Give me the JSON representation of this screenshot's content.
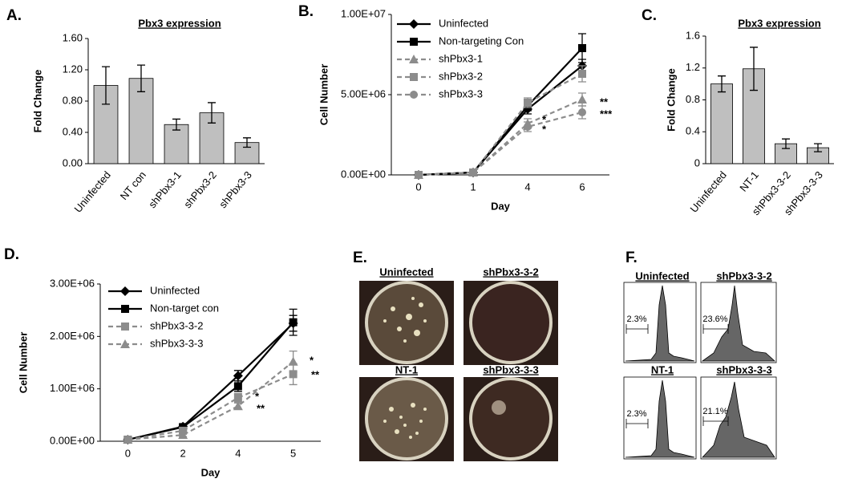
{
  "chart_data": [
    {
      "type": "bar",
      "panel_label": "A.",
      "title": "Pbx3 expression",
      "ylabel": "Fold Change",
      "categories": [
        "Uninfected",
        "NT con",
        "shPbx3-1",
        "shPbx3-2",
        "shPbx3-3"
      ],
      "values": [
        1.0,
        1.09,
        0.5,
        0.65,
        0.27
      ],
      "errors": [
        0.24,
        0.17,
        0.07,
        0.13,
        0.06
      ],
      "color": "#bfbfbf",
      "ylim": [
        0,
        1.6
      ],
      "yticks": [
        {
          "value": 0,
          "label": "0.00"
        },
        {
          "value": 0.4,
          "label": "0.40"
        },
        {
          "value": 0.8,
          "label": "0.80"
        },
        {
          "value": 1.2,
          "label": "1.20"
        },
        {
          "value": 1.6,
          "label": "1.60"
        }
      ]
    },
    {
      "type": "line",
      "panel_label": "B.",
      "xlabel": "Day",
      "ylabel": "Cell Number",
      "legend": "upper left",
      "categories": [
        "0",
        "1",
        "4",
        "6"
      ],
      "series": [
        {
          "name": "Uninfected",
          "color": "#000000",
          "marker": "diamond",
          "dash": false,
          "values": [
            0,
            150000,
            4100000,
            6800000
          ],
          "errors": [
            50000,
            50000,
            300000,
            400000
          ]
        },
        {
          "name": "Non-targeting Con",
          "color": "#000000",
          "marker": "square",
          "dash": false,
          "values": [
            0,
            150000,
            4300000,
            7900000
          ],
          "errors": [
            50000,
            50000,
            300000,
            900000
          ]
        },
        {
          "name": "shPbx3-1",
          "color": "#8c8c8c",
          "marker": "triangle",
          "dash": true,
          "values": [
            0,
            150000,
            3200000,
            4700000
          ],
          "errors": [
            50000,
            50000,
            300000,
            400000
          ]
        },
        {
          "name": "shPbx3-2",
          "color": "#8c8c8c",
          "marker": "square",
          "dash": true,
          "values": [
            0,
            150000,
            4500000,
            6300000
          ],
          "errors": [
            50000,
            50000,
            300000,
            500000
          ]
        },
        {
          "name": "shPbx3-3",
          "color": "#8c8c8c",
          "marker": "circle",
          "dash": true,
          "values": [
            0,
            150000,
            3000000,
            3900000
          ],
          "errors": [
            50000,
            50000,
            300000,
            400000
          ]
        }
      ],
      "annotations": [
        "*",
        "*",
        "**",
        "***"
      ],
      "ylim": [
        0,
        10000000
      ],
      "yticks": [
        {
          "value": 0,
          "label": "0.00E+00"
        },
        {
          "value": 5000000,
          "label": "5.00E+06"
        },
        {
          "value": 10000000,
          "label": "1.00E+07"
        }
      ]
    },
    {
      "type": "bar",
      "panel_label": "C.",
      "title": "Pbx3 expression",
      "ylabel": "Fold Change",
      "categories": [
        "Uninfected",
        "NT-1",
        "shPbx3-3-2",
        "shPbx3-3-3"
      ],
      "values": [
        1.0,
        1.19,
        0.25,
        0.2
      ],
      "errors": [
        0.1,
        0.27,
        0.06,
        0.05
      ],
      "color": "#bfbfbf",
      "ylim": [
        0,
        1.6
      ],
      "yticks": [
        0,
        0.4,
        0.8,
        1.2,
        1.6
      ]
    },
    {
      "type": "line",
      "panel_label": "D.",
      "xlabel": "Day",
      "ylabel": "Cell Number",
      "legend": "upper left",
      "categories": [
        "0",
        "2",
        "4",
        "5"
      ],
      "series": [
        {
          "name": "Uninfected",
          "color": "#000000",
          "marker": "diamond",
          "dash": false,
          "values": [
            30000,
            280000,
            1250000,
            2250000
          ],
          "errors": [
            20000,
            30000,
            100000,
            150000
          ]
        },
        {
          "name": "Non-target con",
          "color": "#000000",
          "marker": "square",
          "dash": false,
          "values": [
            30000,
            270000,
            1050000,
            2270000
          ],
          "errors": [
            20000,
            30000,
            100000,
            250000
          ]
        },
        {
          "name": "shPbx3-3-2",
          "color": "#8c8c8c",
          "marker": "square",
          "dash": true,
          "values": [
            30000,
            200000,
            830000,
            1280000
          ],
          "errors": [
            20000,
            30000,
            80000,
            200000
          ]
        },
        {
          "name": "shPbx3-3-3",
          "color": "#8c8c8c",
          "marker": "triangle",
          "dash": true,
          "values": [
            30000,
            120000,
            670000,
            1520000
          ],
          "errors": [
            20000,
            30000,
            60000,
            200000
          ]
        }
      ],
      "annotations": [
        "*",
        "**",
        "*",
        "**"
      ],
      "ylim": [
        0,
        3000000
      ],
      "yticks": [
        {
          "value": 0,
          "label": "0.00E+00"
        },
        {
          "value": 1000000,
          "label": "1.00E+06"
        },
        {
          "value": 2000000,
          "label": "2.00E+06"
        },
        {
          "value": 3000000,
          "label": "3.00E+06"
        }
      ]
    }
  ],
  "panel_e": {
    "label": "E.",
    "plates": [
      "Uninfected",
      "shPbx3-3-2",
      "NT-1",
      "shPbx3-3-3"
    ]
  },
  "panel_f": {
    "label": "F.",
    "samples": [
      {
        "name": "Uninfected",
        "percent": "2.3%"
      },
      {
        "name": "shPbx3-3-2",
        "percent": "23.6%"
      },
      {
        "name": "NT-1",
        "percent": "2.3%"
      },
      {
        "name": "shPbx3-3-3",
        "percent": "21.1%"
      }
    ]
  }
}
